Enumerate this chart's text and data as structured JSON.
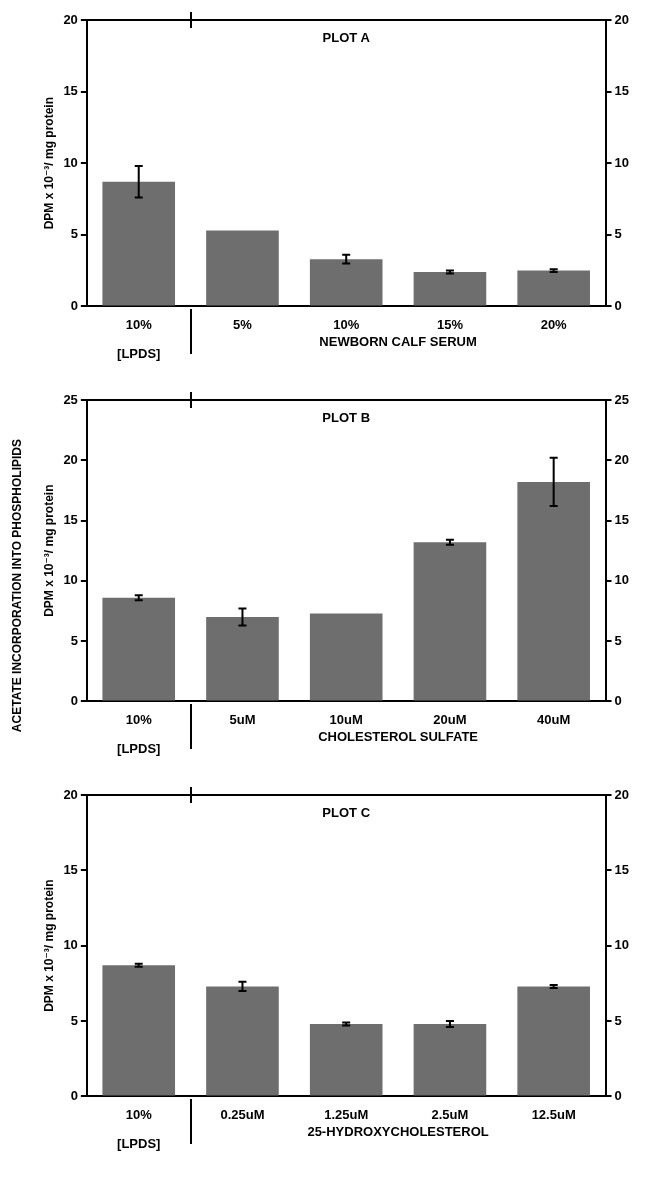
{
  "chart_data": [
    {
      "type": "bar",
      "title": "PLOT A",
      "categories": [
        "10%",
        "5%",
        "10%",
        "15%",
        "20%"
      ],
      "values": [
        8.7,
        5.3,
        3.3,
        2.4,
        2.5
      ],
      "errors": [
        1.1,
        null,
        0.3,
        0.1,
        0.1
      ],
      "color": "#6e6e6e",
      "ylim": [
        0,
        20
      ],
      "yticks": [
        0,
        5,
        10,
        15,
        20
      ],
      "y2lim": [
        0,
        20
      ],
      "y2ticks": [
        0,
        5,
        10,
        15,
        20
      ],
      "ylabel": "DPM x 10⁻³/ mg protein",
      "xlabel": "NEWBORN CALF SERUM",
      "annotations": [
        "[LPDS]"
      ]
    },
    {
      "type": "bar",
      "title": "PLOT B",
      "categories": [
        "10%",
        "5uM",
        "10uM",
        "20uM",
        "40uM"
      ],
      "values": [
        8.6,
        7.0,
        7.3,
        13.2,
        18.2
      ],
      "errors": [
        0.2,
        0.7,
        null,
        0.2,
        2.0
      ],
      "color": "#6e6e6e",
      "ylim": [
        0,
        25
      ],
      "yticks": [
        0,
        5,
        10,
        15,
        20,
        25
      ],
      "y2lim": [
        0,
        25
      ],
      "y2ticks": [
        0,
        5,
        10,
        15,
        20,
        25
      ],
      "ylabel": "DPM x 10⁻³/ mg protein",
      "xlabel": "CHOLESTEROL SULFATE",
      "annotations": [
        "[LPDS]",
        "ACETATE INCORPORATION INTO PHOSPHOLIPIDS"
      ]
    },
    {
      "type": "bar",
      "title": "PLOT C",
      "categories": [
        "10%",
        "0.25uM",
        "1.25uM",
        "2.5uM",
        "12.5uM"
      ],
      "values": [
        8.7,
        7.3,
        4.8,
        4.8,
        7.3
      ],
      "errors": [
        0.1,
        0.3,
        0.1,
        0.2,
        0.1
      ],
      "color": "#6e6e6e",
      "ylim": [
        0,
        20
      ],
      "yticks": [
        0,
        5,
        10,
        15,
        20
      ],
      "y2lim": [
        0,
        20
      ],
      "y2ticks": [
        0,
        5,
        10,
        15,
        20
      ],
      "ylabel": "DPM x 10⁻³/ mg protein",
      "xlabel": "25-HYDROXYCHOLESTEROL",
      "annotations": [
        "[LPDS]"
      ]
    }
  ]
}
